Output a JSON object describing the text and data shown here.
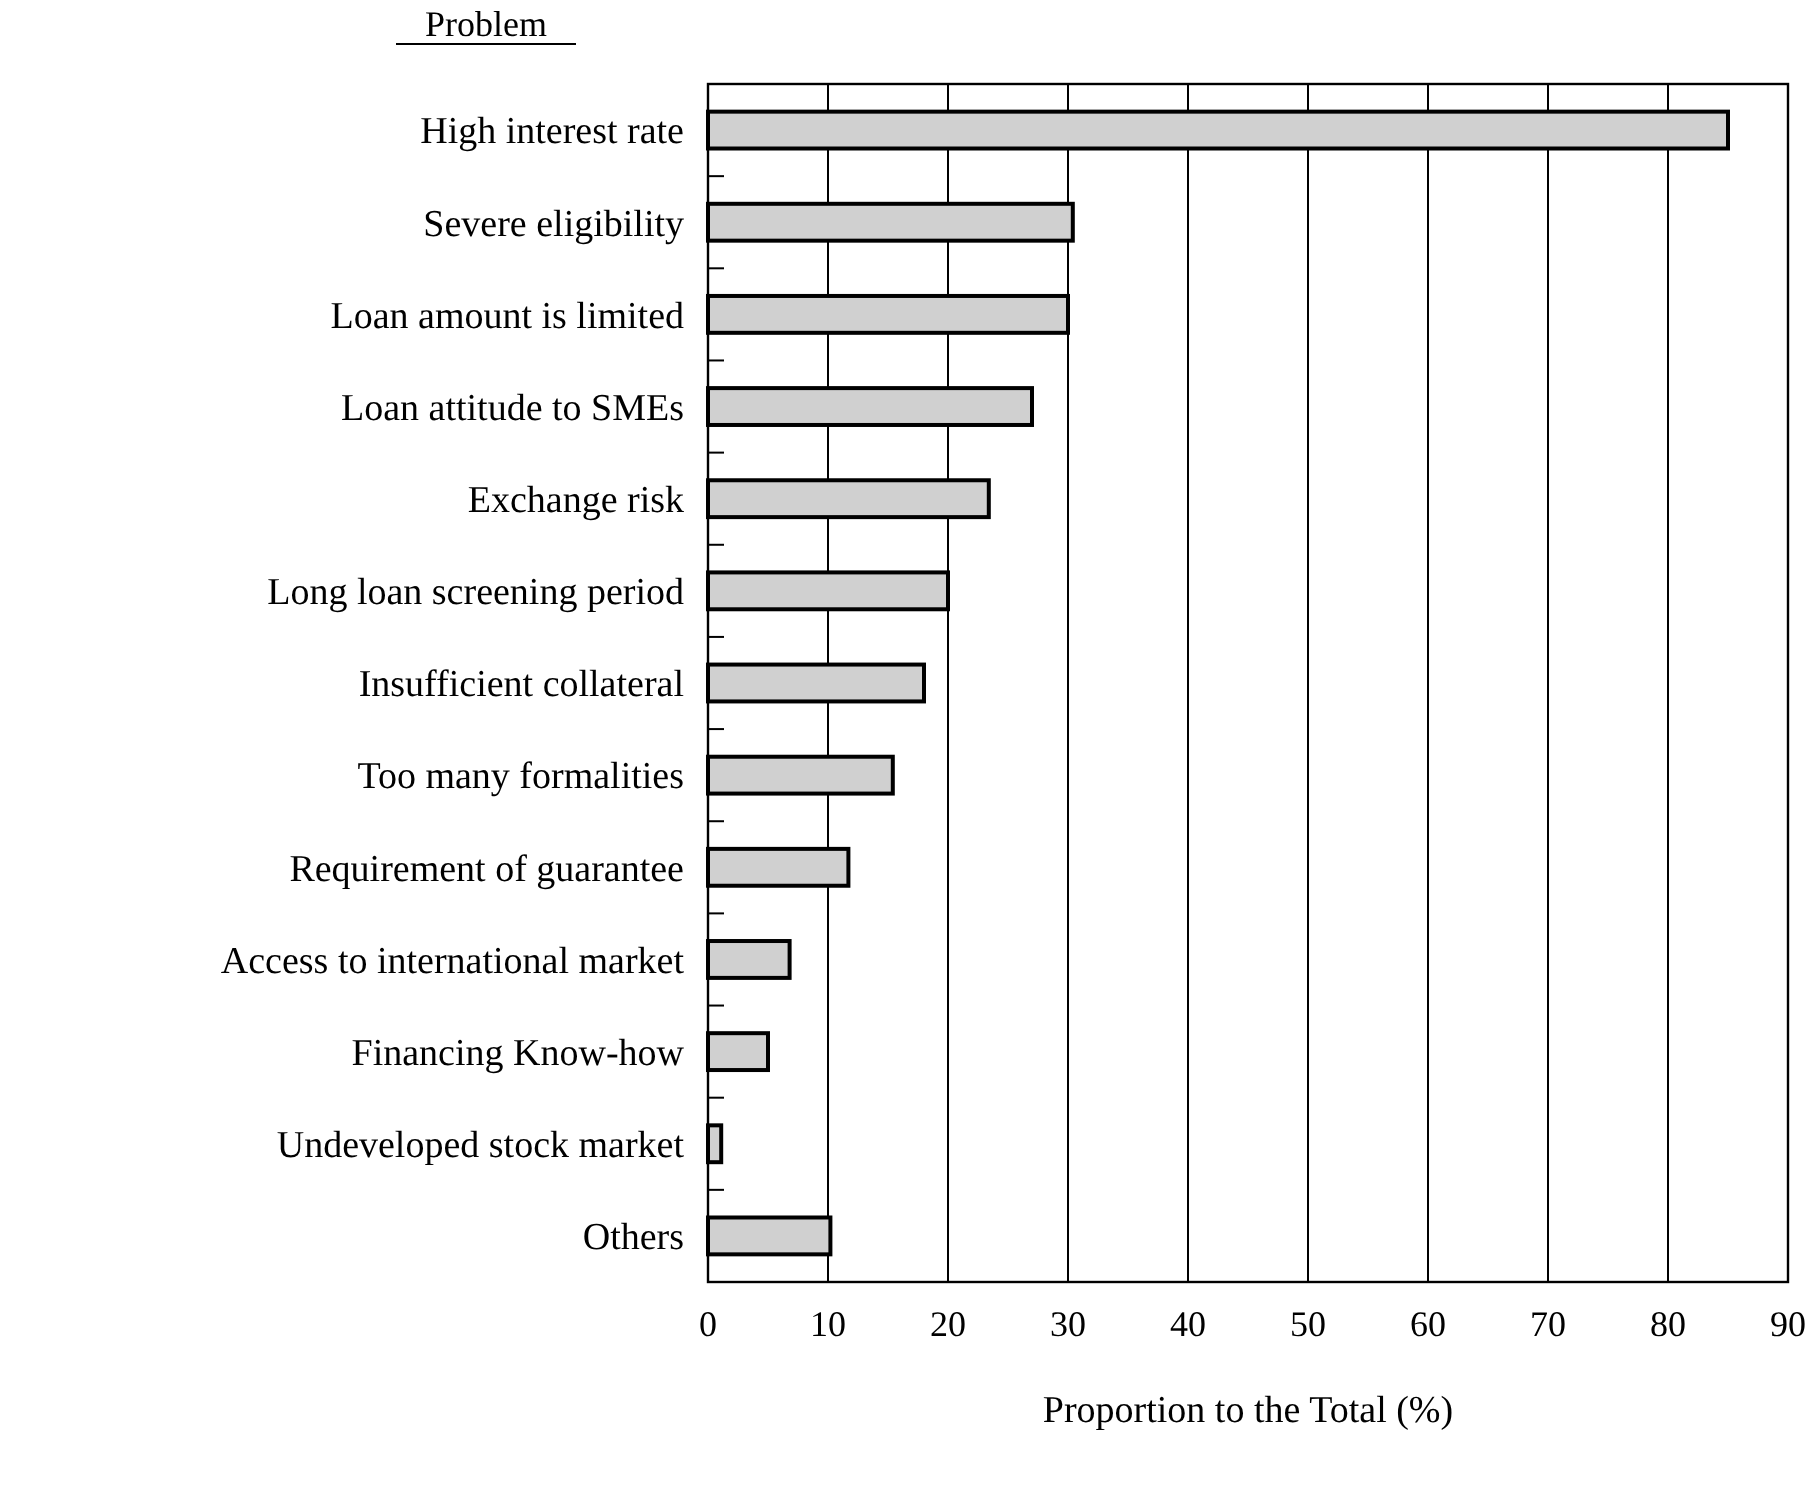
{
  "chart_data": {
    "type": "bar",
    "orientation": "horizontal",
    "ylabel": "Problem",
    "xlabel": "Proportion to the Total (%)",
    "categories": [
      "High interest rate",
      "Severe eligibility",
      "Loan amount is limited",
      "Loan attitude to SMEs",
      "Exchange risk",
      "Long loan screening period",
      "Insufficient collateral",
      "Too many formalities",
      "Requirement of guarantee",
      "Access to international market",
      "Financing Know-how",
      "Undeveloped stock market",
      "Others"
    ],
    "values": [
      85,
      30.4,
      30,
      27,
      23.4,
      20,
      18,
      15.4,
      11.7,
      6.8,
      5,
      1.1,
      10.2
    ],
    "color": "#d0d0d0",
    "xlim": [
      0,
      90
    ],
    "xticks": [
      0,
      10,
      20,
      30,
      40,
      50,
      60,
      70,
      80,
      90
    ],
    "grid": "x"
  }
}
